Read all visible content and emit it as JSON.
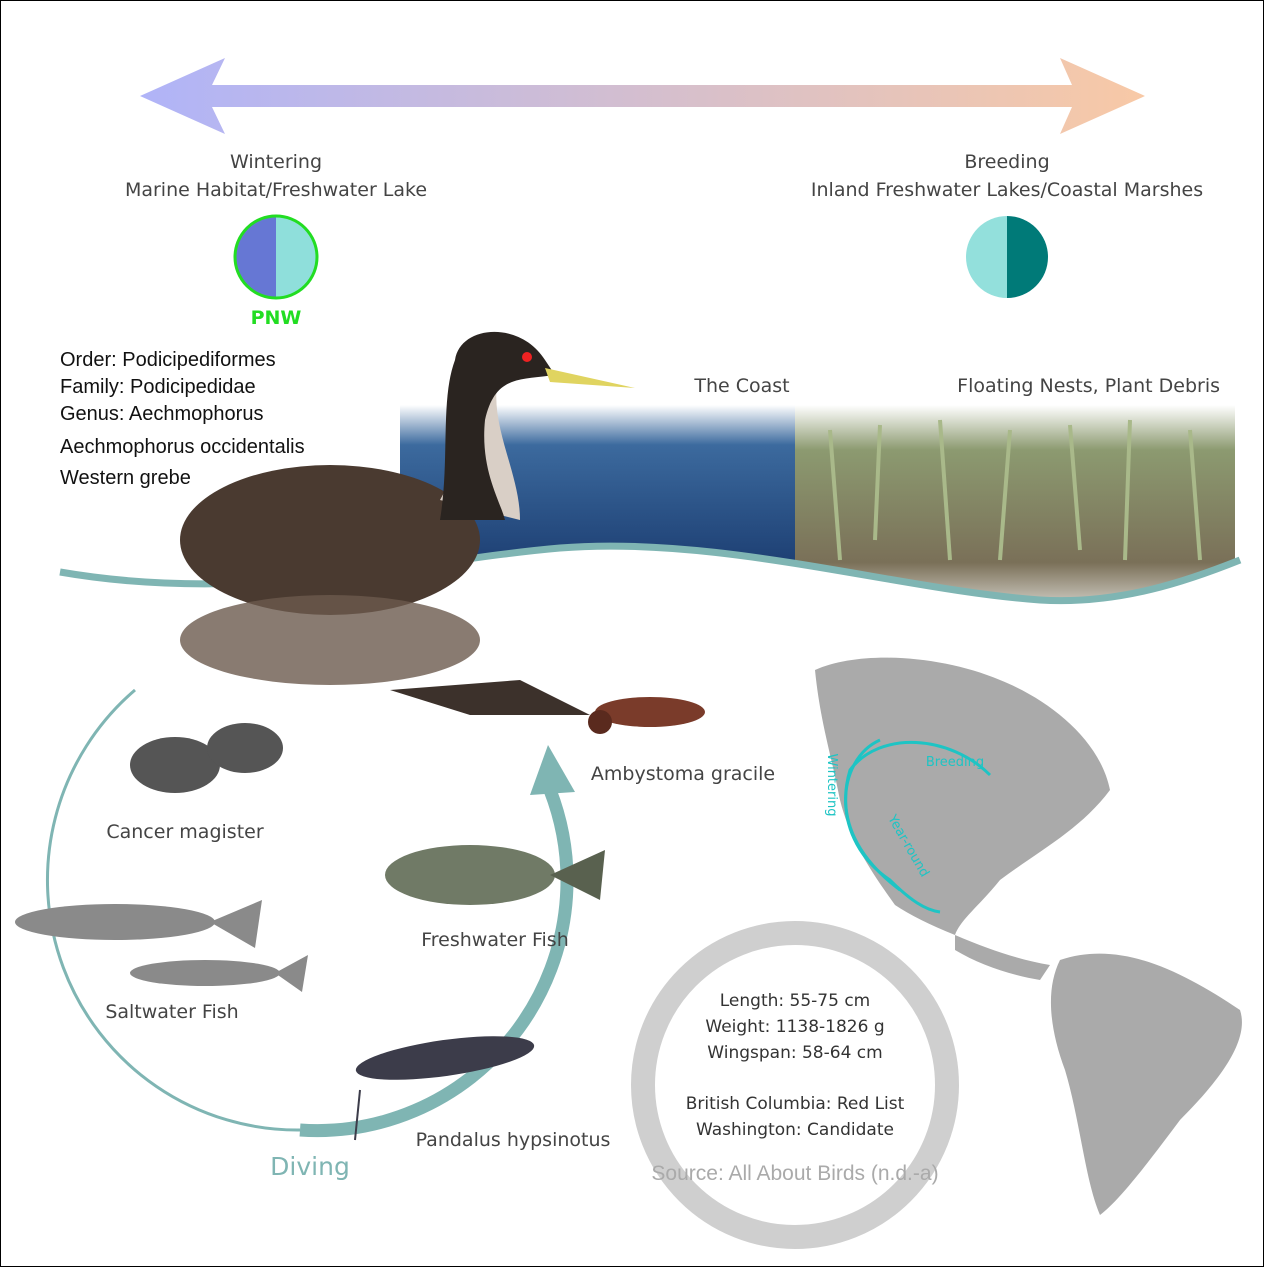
{
  "header": {
    "left": {
      "title": "Wintering",
      "subtitle": "Marine Habitat/Freshwater Lake",
      "region": "PNW"
    },
    "right": {
      "title": "Breeding",
      "subtitle": "Inland Freshwater Lakes/Coastal Marshes"
    }
  },
  "taxonomy": {
    "order": "Order: Podicipediformes",
    "family": "Family: Podicipedidae",
    "genus": "Genus: Aechmophorus",
    "species": "Aechmophorus occidentalis",
    "common_name": "Western grebe"
  },
  "habitats": {
    "coast": "The Coast",
    "nests": "Floating Nests, Plant Debris"
  },
  "diet": {
    "amphibian": "Ambystoma gracile",
    "crab": "Cancer magister",
    "freshwater": "Freshwater Fish",
    "saltwater": "Saltwater Fish",
    "shrimp": "Pandalus hypsinotus",
    "method": "Diving"
  },
  "map": {
    "wintering": "Wintering",
    "breeding": "Breeding",
    "year_round": "Year-round"
  },
  "facts": {
    "lines": [
      "Length: 55-75 cm",
      "Weight: 1138-1826 g",
      "Wingspan: 58-64 cm",
      "British Columbia: Red List",
      "Washington: Candidate"
    ],
    "source": "Source: All About Birds (n.d.-a)"
  }
}
